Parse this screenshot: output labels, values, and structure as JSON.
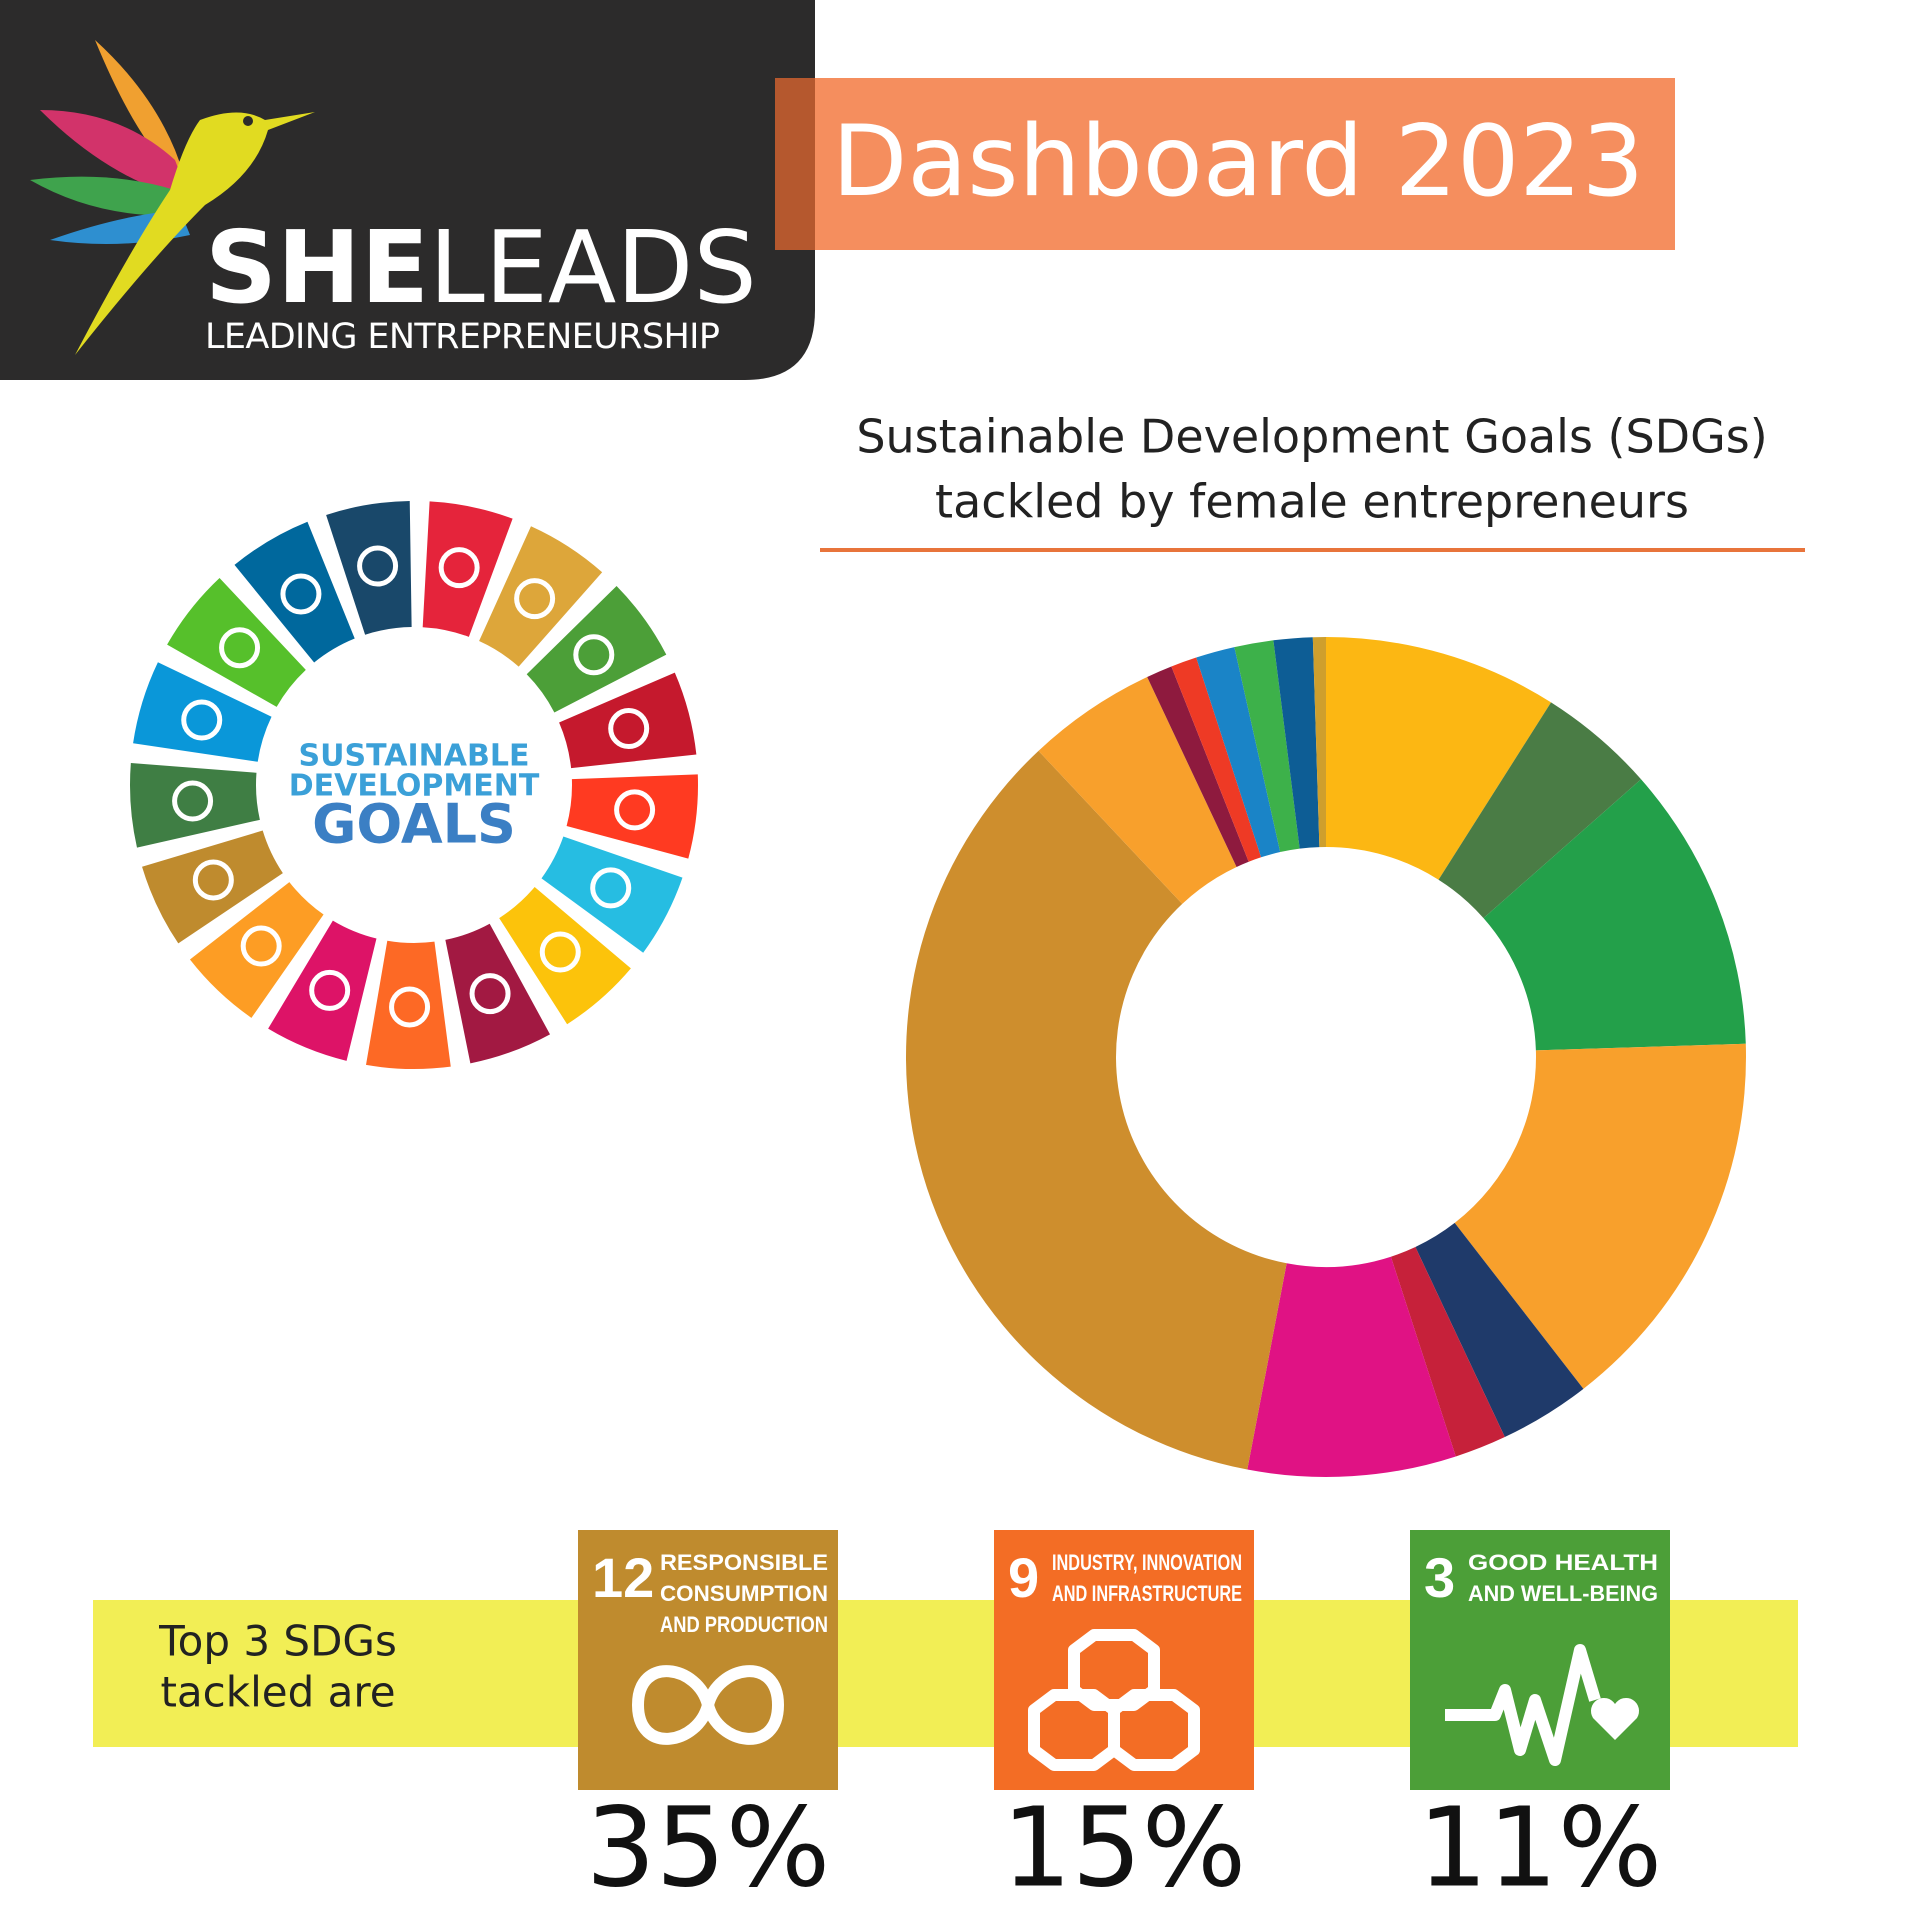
{
  "header": {
    "brand_bold": "SHE",
    "brand_light": "LEADS",
    "tagline": "LEADING ENTREPRENEURSHIP",
    "title": "Dashboard 2023"
  },
  "sdg_wheel": {
    "lines": [
      "SUSTAINABLE",
      "DEVELOPMENT",
      "GOALS"
    ]
  },
  "chart_data": {
    "type": "donut",
    "title_lines": [
      "Sustainable Development Goals (SDGs)",
      "tackled by female entrepreneurs"
    ],
    "values": [
      9,
      4.5,
      11,
      15,
      3.5,
      2,
      8,
      35,
      5,
      1,
      1,
      1.5,
      1.5,
      1.5,
      0.5
    ],
    "colors": [
      "#FCB713",
      "#4A7C45",
      "#23A04A",
      "#F8A02C",
      "#1F3A6A",
      "#C6213A",
      "#E01284",
      "#CE8E2D",
      "#F8A02C",
      "#8E1A3E",
      "#EE3A25",
      "#1A84C7",
      "#3DB14A",
      "#0D5D95",
      "#CE9F2D"
    ]
  },
  "top3": {
    "label_lines": [
      "Top 3 SDGs",
      "tackled are"
    ],
    "items": [
      {
        "number": "12",
        "name_lines": [
          "RESPONSIBLE",
          "CONSUMPTION",
          "AND PRODUCTION"
        ],
        "share": "35%"
      },
      {
        "number": "9",
        "name_lines": [
          "INDUSTRY, INNOVATION",
          "AND INFRASTRUCTURE"
        ],
        "share": "15%"
      },
      {
        "number": "3",
        "name_lines": [
          "GOOD HEALTH",
          "AND WELL-BEING"
        ],
        "share": "11%"
      }
    ]
  }
}
